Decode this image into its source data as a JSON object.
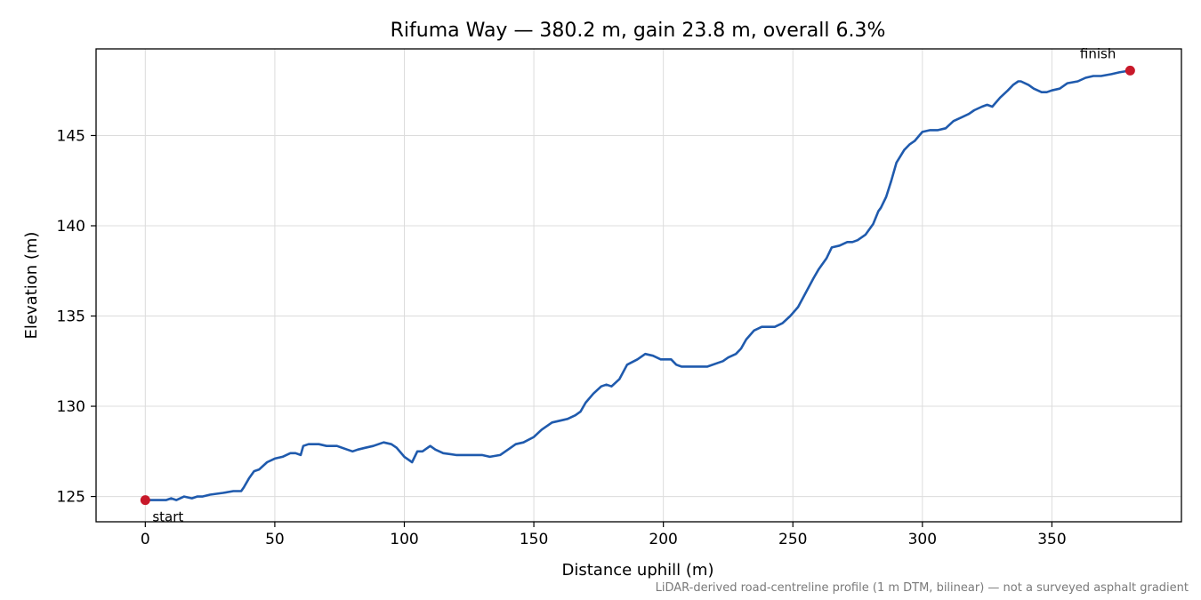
{
  "chart_data": {
    "type": "line",
    "title": "Rifuma Way — 380.2 m, gain 23.8 m, overall 6.3%",
    "xlabel": "Distance uphill (m)",
    "ylabel": "Elevation (m)",
    "xlim": [
      -19,
      400
    ],
    "ylim": [
      123.6,
      149.8
    ],
    "xticks": [
      0,
      50,
      100,
      150,
      200,
      250,
      300,
      350
    ],
    "yticks": [
      125,
      130,
      135,
      140,
      145
    ],
    "grid": true,
    "footnote": "LiDAR-derived road-centreline profile (1 m DTM, bilinear) — not a surveyed asphalt gradient",
    "series": [
      {
        "color": "#1f5aad",
        "x": [
          0,
          5,
          8,
          10,
          12,
          15,
          18,
          20,
          22,
          25,
          30,
          34,
          37,
          38,
          40,
          42,
          44,
          47,
          50,
          53,
          56,
          58,
          60,
          61,
          63,
          67,
          70,
          74,
          78,
          80,
          82,
          85,
          88,
          92,
          95,
          97,
          100,
          103,
          105,
          107,
          110,
          112,
          115,
          120,
          125,
          130,
          133,
          137,
          140,
          143,
          146,
          150,
          153,
          157,
          160,
          163,
          166,
          168,
          170,
          173,
          176,
          178,
          180,
          183,
          186,
          190,
          193,
          196,
          199,
          203,
          205,
          207,
          212,
          215,
          217,
          221,
          223,
          225,
          228,
          230,
          232,
          235,
          238,
          243,
          246,
          249,
          252,
          255,
          258,
          260,
          263,
          265,
          268,
          271,
          273,
          275,
          278,
          281,
          283,
          284,
          286,
          288,
          290,
          293,
          295,
          297,
          300,
          303,
          306,
          309,
          312,
          315,
          318,
          320,
          323,
          325,
          327,
          330,
          333,
          335,
          337,
          338,
          341,
          343,
          346,
          348,
          350,
          353,
          356,
          360,
          363,
          366,
          369,
          373,
          376,
          380.2
        ],
        "y": [
          124.8,
          124.8,
          124.8,
          124.9,
          124.8,
          125.0,
          124.9,
          125.0,
          125.0,
          125.1,
          125.2,
          125.3,
          125.3,
          125.5,
          126.0,
          126.4,
          126.5,
          126.9,
          127.1,
          127.2,
          127.4,
          127.4,
          127.3,
          127.8,
          127.9,
          127.9,
          127.8,
          127.8,
          127.6,
          127.5,
          127.6,
          127.7,
          127.8,
          128.0,
          127.9,
          127.7,
          127.2,
          126.9,
          127.5,
          127.5,
          127.8,
          127.6,
          127.4,
          127.3,
          127.3,
          127.3,
          127.2,
          127.3,
          127.6,
          127.9,
          128.0,
          128.3,
          128.7,
          129.1,
          129.2,
          129.3,
          129.5,
          129.7,
          130.2,
          130.7,
          131.1,
          131.2,
          131.1,
          131.5,
          132.3,
          132.6,
          132.9,
          132.8,
          132.6,
          132.6,
          132.3,
          132.2,
          132.2,
          132.2,
          132.2,
          132.4,
          132.5,
          132.7,
          132.9,
          133.2,
          133.7,
          134.2,
          134.4,
          134.4,
          134.6,
          135.0,
          135.5,
          136.3,
          137.1,
          137.6,
          138.2,
          138.8,
          138.9,
          139.1,
          139.1,
          139.2,
          139.5,
          140.1,
          140.8,
          141.0,
          141.6,
          142.5,
          143.5,
          144.2,
          144.5,
          144.7,
          145.2,
          145.3,
          145.3,
          145.4,
          145.8,
          146.0,
          146.2,
          146.4,
          146.6,
          146.7,
          146.6,
          147.1,
          147.5,
          147.8,
          148.0,
          148.0,
          147.8,
          147.6,
          147.4,
          147.4,
          147.5,
          147.6,
          147.9,
          148.0,
          148.2,
          148.3,
          148.3,
          148.4,
          148.5,
          148.6
        ]
      }
    ],
    "markers": [
      {
        "x": 0,
        "y": 124.8,
        "label": "start",
        "color": "#c8192a",
        "label_pos": "below-right"
      },
      {
        "x": 380.2,
        "y": 148.6,
        "label": "finish",
        "color": "#c8192a",
        "label_pos": "above-left"
      }
    ]
  }
}
